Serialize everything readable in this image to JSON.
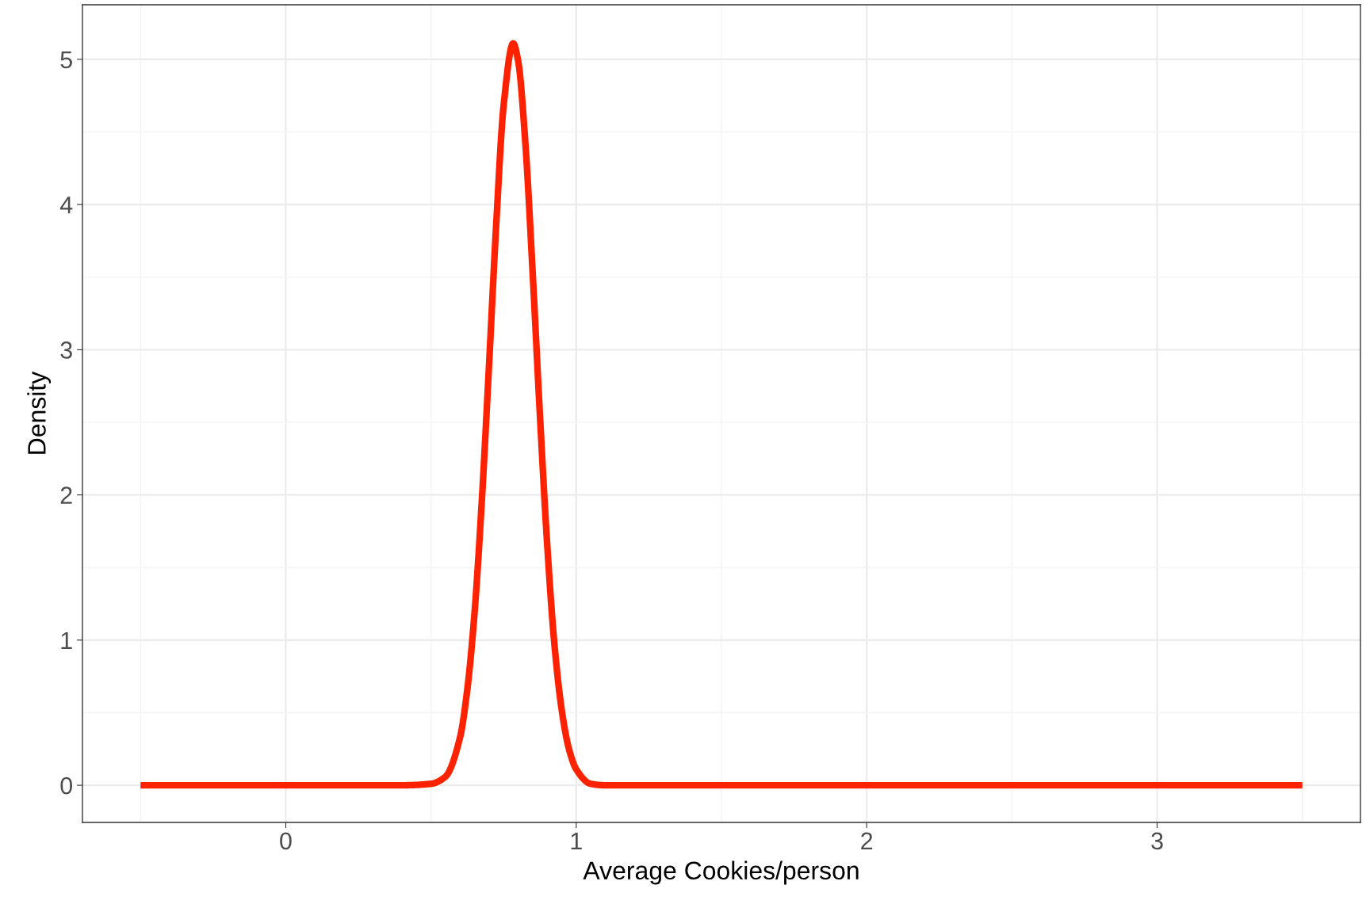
{
  "chart_data": {
    "type": "line",
    "xlabel": "Average Cookies/person",
    "ylabel": "Density",
    "x": [
      -0.5,
      0.4,
      0.5,
      0.55,
      0.6,
      0.625,
      0.65,
      0.675,
      0.7,
      0.725,
      0.75,
      0.783,
      0.8,
      0.825,
      0.85,
      0.875,
      0.9,
      0.925,
      0.95,
      0.975,
      1.0,
      1.05,
      1.1,
      3.5
    ],
    "series": [
      {
        "color": "#ff2200",
        "values": [
          0,
          0,
          0.01,
          0.06,
          0.33,
          0.66,
          1.19,
          1.96,
          2.9,
          3.88,
          4.68,
          5.11,
          4.99,
          4.42,
          3.53,
          2.55,
          1.66,
          0.97,
          0.52,
          0.25,
          0.11,
          0.01,
          0,
          0
        ]
      }
    ],
    "xlim": [
      -0.7,
      3.7
    ],
    "xticks": [
      0,
      1,
      2,
      3
    ],
    "ylim": [
      -0.256,
      5.376
    ],
    "yticks": [
      0,
      1,
      2,
      3,
      4,
      5
    ],
    "grid": true,
    "marker": "none",
    "line_style": "solid"
  }
}
